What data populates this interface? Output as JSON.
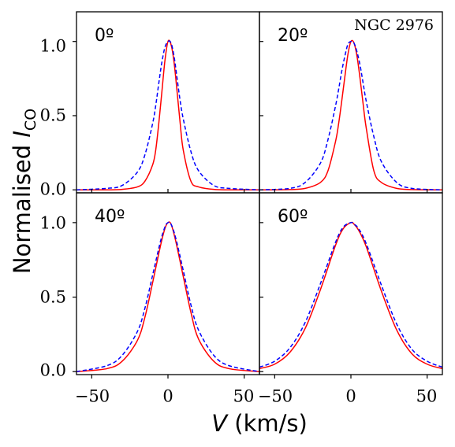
{
  "chart_data": {
    "type": "line",
    "galaxy_label": "NGC 2976",
    "ylabel_main": "Normalised ",
    "ylabel_italic": "I",
    "ylabel_sub": "CO",
    "xlabel_italic": "V",
    "xlabel_units": " (km/s)",
    "xlim": [
      -60,
      60
    ],
    "ylim": [
      -0.02,
      1.2
    ],
    "xticks": [
      -50,
      0,
      50
    ],
    "xtick_labels": [
      "−50",
      "0",
      "50"
    ],
    "yticks": [
      0.0,
      0.5,
      1.0
    ],
    "ytick_labels": [
      "0.0",
      "0.5",
      "1.0"
    ],
    "grid": false,
    "series_styles": [
      {
        "color": "#ff0000",
        "dash": "solid"
      },
      {
        "color": "#0000ff",
        "dash": "dashed"
      }
    ],
    "panels": [
      {
        "label": "0º",
        "series": [
          {
            "x": [
              -60,
              -40,
              -30,
              -20,
              -15,
              -10,
              -8,
              -6,
              -4,
              -2,
              0,
              2,
              4,
              6,
              8,
              10,
              15,
              20,
              30,
              40,
              60
            ],
            "values": [
              0.0,
              0.0,
              0.003,
              0.02,
              0.06,
              0.17,
              0.27,
              0.45,
              0.66,
              0.87,
              1.0,
              0.98,
              0.86,
              0.66,
              0.45,
              0.27,
              0.06,
              0.02,
              0.003,
              0.0,
              0.0
            ]
          },
          {
            "x": [
              -60,
              -40,
              -30,
              -20,
              -15,
              -10,
              -8,
              -6,
              -4,
              -2,
              0,
              2,
              4,
              6,
              8,
              10,
              15,
              20,
              30,
              40,
              60
            ],
            "values": [
              0.0,
              0.01,
              0.03,
              0.12,
              0.24,
              0.45,
              0.57,
              0.72,
              0.86,
              0.96,
              1.0,
              0.99,
              0.9,
              0.75,
              0.6,
              0.48,
              0.26,
              0.13,
              0.03,
              0.01,
              0.0
            ]
          }
        ]
      },
      {
        "label": "20º",
        "series": [
          {
            "x": [
              -60,
              -40,
              -30,
              -20,
              -15,
              -10,
              -8,
              -6,
              -4,
              -2,
              0,
              2,
              4,
              6,
              8,
              10,
              15,
              20,
              30,
              40,
              60
            ],
            "values": [
              0.0,
              0.002,
              0.01,
              0.05,
              0.13,
              0.33,
              0.45,
              0.6,
              0.76,
              0.91,
              1.0,
              0.99,
              0.9,
              0.75,
              0.58,
              0.42,
              0.13,
              0.05,
              0.01,
              0.002,
              0.0
            ]
          },
          {
            "x": [
              -60,
              -40,
              -30,
              -20,
              -15,
              -10,
              -8,
              -6,
              -4,
              -2,
              0,
              2,
              4,
              6,
              8,
              10,
              15,
              20,
              30,
              40,
              60
            ],
            "values": [
              0.0,
              0.01,
              0.05,
              0.18,
              0.34,
              0.57,
              0.68,
              0.8,
              0.9,
              0.98,
              1.0,
              0.99,
              0.93,
              0.84,
              0.72,
              0.6,
              0.36,
              0.19,
              0.05,
              0.01,
              0.0
            ]
          }
        ]
      },
      {
        "label": "40º",
        "series": [
          {
            "x": [
              -60,
              -40,
              -30,
              -20,
              -15,
              -10,
              -5,
              -2,
              0,
              2,
              5,
              10,
              15,
              20,
              30,
              40,
              60
            ],
            "values": [
              0.0,
              0.02,
              0.07,
              0.21,
              0.37,
              0.6,
              0.84,
              0.96,
              1.0,
              0.99,
              0.88,
              0.64,
              0.4,
              0.22,
              0.07,
              0.02,
              0.0
            ]
          },
          {
            "x": [
              -60,
              -40,
              -30,
              -20,
              -15,
              -10,
              -5,
              -2,
              0,
              2,
              5,
              10,
              15,
              20,
              30,
              40,
              60
            ],
            "values": [
              0.0,
              0.04,
              0.11,
              0.27,
              0.43,
              0.65,
              0.87,
              0.97,
              1.0,
              0.99,
              0.9,
              0.68,
              0.45,
              0.28,
              0.11,
              0.04,
              0.0
            ]
          }
        ]
      },
      {
        "label": "60º",
        "series": [
          {
            "x": [
              -60,
              -50,
              -40,
              -30,
              -20,
              -10,
              -5,
              0,
              2,
              5,
              10,
              20,
              30,
              40,
              50,
              60
            ],
            "values": [
              0.02,
              0.05,
              0.13,
              0.29,
              0.55,
              0.85,
              0.96,
              1.0,
              0.99,
              0.95,
              0.84,
              0.54,
              0.28,
              0.12,
              0.05,
              0.02
            ]
          },
          {
            "x": [
              -60,
              -50,
              -40,
              -30,
              -20,
              -10,
              -5,
              0,
              2,
              5,
              10,
              20,
              30,
              40,
              50,
              60
            ],
            "values": [
              0.03,
              0.07,
              0.16,
              0.33,
              0.59,
              0.87,
              0.97,
              1.0,
              0.99,
              0.96,
              0.86,
              0.58,
              0.32,
              0.15,
              0.07,
              0.03
            ]
          }
        ]
      }
    ]
  }
}
